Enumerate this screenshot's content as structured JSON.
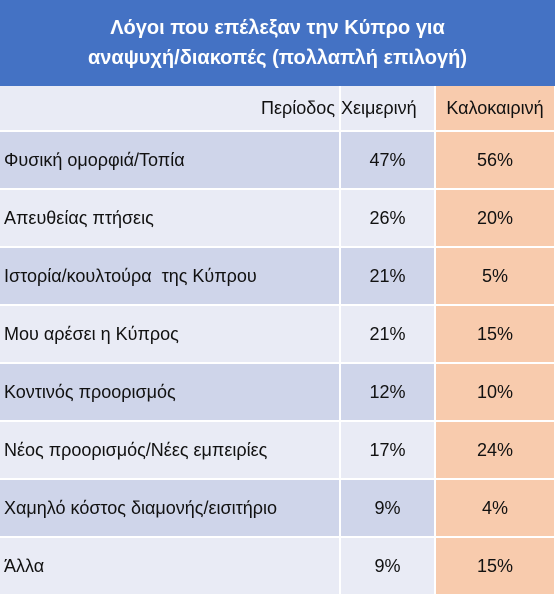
{
  "title": {
    "line1": "Λόγοι που επέλεξαν την Κύπρο για",
    "line2": "αναψυχή/διακοπές (πολλαπλή επιλογή)"
  },
  "chart_data": {
    "type": "table",
    "header": {
      "label": "Περίοδος",
      "col1": "Χειμερινή",
      "col2": "Καλοκαιρινή"
    },
    "rows": [
      {
        "label": "Φυσική ομορφιά/Τοπία",
        "winter": "47%",
        "summer": "56%"
      },
      {
        "label": "Απευθείας πτήσεις",
        "winter": "26%",
        "summer": "20%"
      },
      {
        "label": "Ιστορία/κουλτούρα  της Κύπρου",
        "winter": "21%",
        "summer": "5%"
      },
      {
        "label": "Μου αρέσει η Κύπρος",
        "winter": "21%",
        "summer": "15%"
      },
      {
        "label": "Κοντινός προορισμός",
        "winter": "12%",
        "summer": "10%"
      },
      {
        "label": "Νέος προορισμός/Νέες εμπειρίες",
        "winter": "17%",
        "summer": "24%"
      },
      {
        "label": "Χαμηλό κόστος διαμονής/εισιτήριο",
        "winter": "9%",
        "summer": "4%"
      },
      {
        "label": "Άλλα",
        "winter": "9%",
        "summer": "15%"
      }
    ]
  },
  "colors": {
    "title_bg": "#4472c4",
    "row_dark": "#cfd5ea",
    "row_light": "#e9ebf5",
    "summer_bg": "#f8cbad"
  }
}
